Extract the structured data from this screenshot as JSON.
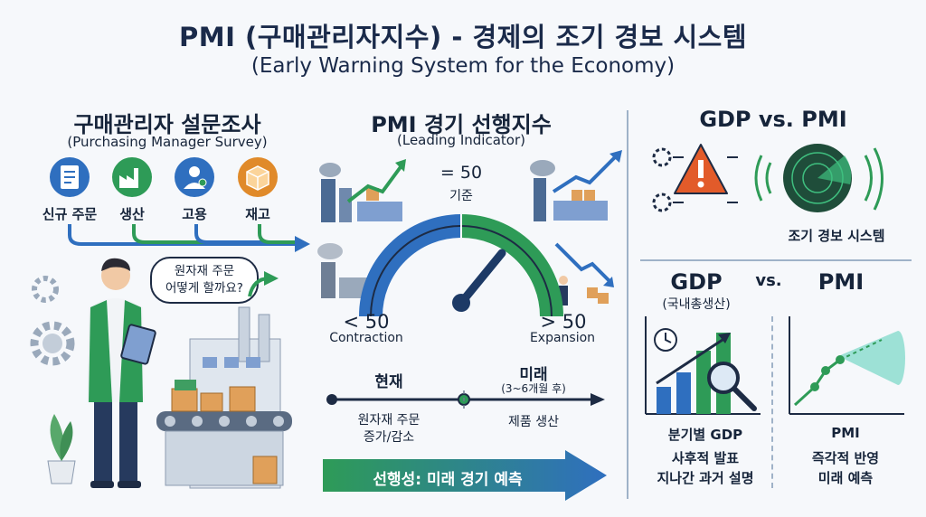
{
  "header": {
    "title": "PMI (구매관리자지수) - 경제의 조기 경보 시스템",
    "subtitle": "(Early Warning System for the Economy)"
  },
  "survey": {
    "heading": "구매관리자 설문조사",
    "subheading": "(Purchasing Manager Survey)",
    "items": [
      {
        "label": "신규 주문",
        "icon": "clipboard-icon",
        "color": "#2f6fbf"
      },
      {
        "label": "생산",
        "icon": "factory-icon",
        "color": "#2e9b57"
      },
      {
        "label": "고용",
        "icon": "worker-icon",
        "color": "#2f6fbf"
      },
      {
        "label": "재고",
        "icon": "box-icon",
        "color": "#e08a2a"
      }
    ],
    "speech_line1": "원자재 주문",
    "speech_line2": "어떻게 할까요?"
  },
  "indicator": {
    "heading": "PMI 경기 선행지수",
    "subheading": "(Leading Indicator)",
    "baseline_value": "= 50",
    "baseline_label": "기준",
    "contraction_value": "< 50",
    "contraction_label": "Contraction",
    "expansion_value": "> 50",
    "expansion_label": "Expansion",
    "colors": {
      "contraction": "#2f6fbf",
      "expansion": "#2e9b57"
    }
  },
  "timeline": {
    "now_label": "현재",
    "future_label": "미래",
    "future_note": "(3~6개월 후)",
    "now_desc_line1": "원자재 주문",
    "now_desc_line2": "증가/감소",
    "future_desc": "제품 생산",
    "banner": "선행성: 미래 경기 예측"
  },
  "comparison": {
    "heading": "GDP vs. PMI",
    "radar_label": "조기 경보 시스템",
    "gdp_title": "GDP",
    "vs": "vs.",
    "pmi_title": "PMI",
    "gdp_sub": "(국내총생산)",
    "gdp_caption": "분기별 GDP",
    "gdp_desc_line1": "사후적 발표",
    "gdp_desc_line2": "지나간 과거 설명",
    "pmi_caption": "PMI",
    "pmi_desc_line1": "즉각적 반영",
    "pmi_desc_line2": "미래 예측"
  }
}
